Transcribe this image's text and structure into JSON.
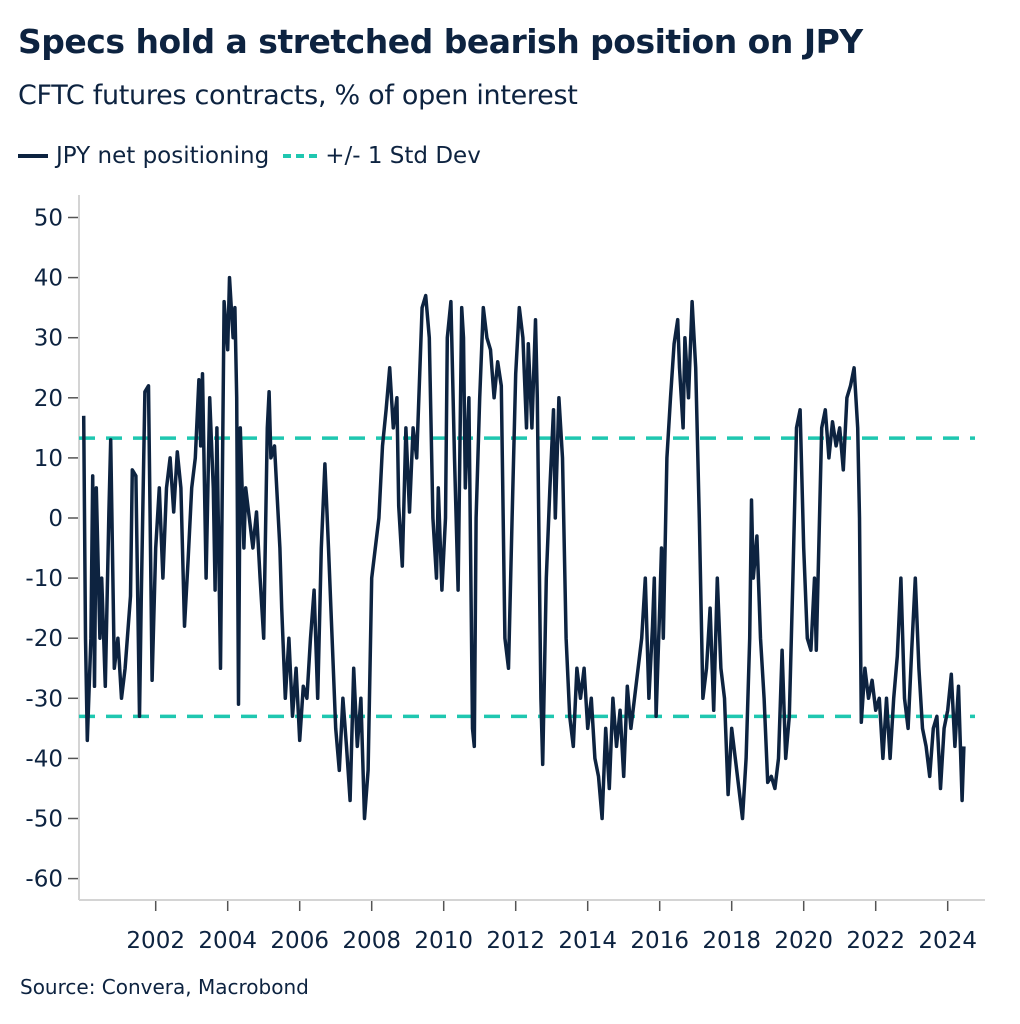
{
  "chart_data": {
    "type": "line",
    "title": "Specs hold a stretched bearish position on JPY",
    "subtitle": "CFTC futures contracts, % of open interest",
    "source": "Source: Convera, Macrobond",
    "xlabel": "",
    "ylabel": "",
    "xlim": [
      1999.87,
      2025.05
    ],
    "ylim": [
      -63,
      53
    ],
    "x_ticks": [
      "2002",
      "2004",
      "2006",
      "2008",
      "2010",
      "2012",
      "2014",
      "2016",
      "2018",
      "2020",
      "2022",
      "2024"
    ],
    "y_ticks": [
      "50",
      "40",
      "30",
      "20",
      "10",
      "0",
      "-10",
      "-20",
      "-30",
      "-40",
      "-50",
      "-60"
    ],
    "grid": false,
    "legend_position": "top-left",
    "colors": {
      "series": "#0d2340",
      "std_dev": "#1fc7b0"
    },
    "series": [
      {
        "name": "JPY net positioning",
        "points": [
          [
            2000.0,
            17
          ],
          [
            2000.05,
            -20
          ],
          [
            2000.1,
            -37
          ],
          [
            2000.2,
            -20
          ],
          [
            2000.25,
            7
          ],
          [
            2000.3,
            -28
          ],
          [
            2000.35,
            5
          ],
          [
            2000.45,
            -20
          ],
          [
            2000.5,
            -10
          ],
          [
            2000.6,
            -28
          ],
          [
            2000.7,
            1
          ],
          [
            2000.75,
            13
          ],
          [
            2000.85,
            -25
          ],
          [
            2000.95,
            -20
          ],
          [
            2001.05,
            -30
          ],
          [
            2001.15,
            -25
          ],
          [
            2001.3,
            -13
          ],
          [
            2001.35,
            8
          ],
          [
            2001.45,
            7
          ],
          [
            2001.55,
            -33
          ],
          [
            2001.6,
            -13
          ],
          [
            2001.7,
            21
          ],
          [
            2001.8,
            22
          ],
          [
            2001.9,
            -27
          ],
          [
            2002.0,
            -5
          ],
          [
            2002.1,
            5
          ],
          [
            2002.2,
            -10
          ],
          [
            2002.3,
            5
          ],
          [
            2002.4,
            10
          ],
          [
            2002.5,
            1
          ],
          [
            2002.6,
            11
          ],
          [
            2002.7,
            5
          ],
          [
            2002.8,
            -18
          ],
          [
            2002.9,
            -7
          ],
          [
            2003.0,
            5
          ],
          [
            2003.1,
            10
          ],
          [
            2003.2,
            23
          ],
          [
            2003.25,
            12
          ],
          [
            2003.3,
            24
          ],
          [
            2003.4,
            -10
          ],
          [
            2003.5,
            20
          ],
          [
            2003.6,
            5
          ],
          [
            2003.65,
            -12
          ],
          [
            2003.7,
            15
          ],
          [
            2003.8,
            -25
          ],
          [
            2003.9,
            36
          ],
          [
            2004.0,
            28
          ],
          [
            2004.05,
            40
          ],
          [
            2004.15,
            30
          ],
          [
            2004.2,
            35
          ],
          [
            2004.25,
            20
          ],
          [
            2004.3,
            -31
          ],
          [
            2004.35,
            15
          ],
          [
            2004.45,
            -5
          ],
          [
            2004.5,
            5
          ],
          [
            2004.6,
            0
          ],
          [
            2004.7,
            -5
          ],
          [
            2004.8,
            1
          ],
          [
            2004.9,
            -10
          ],
          [
            2005.0,
            -20
          ],
          [
            2005.1,
            15
          ],
          [
            2005.15,
            21
          ],
          [
            2005.2,
            10
          ],
          [
            2005.3,
            12
          ],
          [
            2005.45,
            -5
          ],
          [
            2005.5,
            -15
          ],
          [
            2005.6,
            -30
          ],
          [
            2005.7,
            -20
          ],
          [
            2005.8,
            -33
          ],
          [
            2005.9,
            -25
          ],
          [
            2006.0,
            -37
          ],
          [
            2006.1,
            -28
          ],
          [
            2006.2,
            -30
          ],
          [
            2006.3,
            -20
          ],
          [
            2006.4,
            -12
          ],
          [
            2006.5,
            -30
          ],
          [
            2006.6,
            -5
          ],
          [
            2006.7,
            9
          ],
          [
            2006.8,
            -5
          ],
          [
            2006.9,
            -20
          ],
          [
            2007.0,
            -35
          ],
          [
            2007.1,
            -42
          ],
          [
            2007.2,
            -30
          ],
          [
            2007.3,
            -38
          ],
          [
            2007.4,
            -47
          ],
          [
            2007.5,
            -25
          ],
          [
            2007.6,
            -38
          ],
          [
            2007.7,
            -30
          ],
          [
            2007.8,
            -50
          ],
          [
            2007.9,
            -42
          ],
          [
            2008.0,
            -10
          ],
          [
            2008.1,
            -5
          ],
          [
            2008.2,
            0
          ],
          [
            2008.3,
            12
          ],
          [
            2008.4,
            18
          ],
          [
            2008.5,
            25
          ],
          [
            2008.6,
            15
          ],
          [
            2008.7,
            20
          ],
          [
            2008.75,
            2
          ],
          [
            2008.85,
            -8
          ],
          [
            2008.95,
            15
          ],
          [
            2009.05,
            1
          ],
          [
            2009.15,
            15
          ],
          [
            2009.25,
            10
          ],
          [
            2009.4,
            35
          ],
          [
            2009.5,
            37
          ],
          [
            2009.6,
            30
          ],
          [
            2009.7,
            0
          ],
          [
            2009.8,
            -10
          ],
          [
            2009.85,
            5
          ],
          [
            2009.95,
            -12
          ],
          [
            2010.05,
            0
          ],
          [
            2010.1,
            30
          ],
          [
            2010.2,
            36
          ],
          [
            2010.3,
            10
          ],
          [
            2010.4,
            -12
          ],
          [
            2010.5,
            35
          ],
          [
            2010.55,
            30
          ],
          [
            2010.6,
            5
          ],
          [
            2010.7,
            20
          ],
          [
            2010.8,
            -35
          ],
          [
            2010.85,
            -38
          ],
          [
            2010.9,
            0
          ],
          [
            2011.0,
            20
          ],
          [
            2011.1,
            35
          ],
          [
            2011.2,
            30
          ],
          [
            2011.3,
            28
          ],
          [
            2011.4,
            20
          ],
          [
            2011.5,
            26
          ],
          [
            2011.6,
            22
          ],
          [
            2011.7,
            -20
          ],
          [
            2011.8,
            -25
          ],
          [
            2011.9,
            0
          ],
          [
            2012.0,
            24
          ],
          [
            2012.1,
            35
          ],
          [
            2012.2,
            30
          ],
          [
            2012.3,
            15
          ],
          [
            2012.35,
            29
          ],
          [
            2012.45,
            15
          ],
          [
            2012.55,
            33
          ],
          [
            2012.6,
            20
          ],
          [
            2012.7,
            -30
          ],
          [
            2012.75,
            -41
          ],
          [
            2012.85,
            -10
          ],
          [
            2012.95,
            5
          ],
          [
            2013.05,
            18
          ],
          [
            2013.1,
            0
          ],
          [
            2013.2,
            20
          ],
          [
            2013.3,
            10
          ],
          [
            2013.4,
            -20
          ],
          [
            2013.5,
            -33
          ],
          [
            2013.6,
            -38
          ],
          [
            2013.7,
            -25
          ],
          [
            2013.8,
            -30
          ],
          [
            2013.9,
            -25
          ],
          [
            2014.0,
            -35
          ],
          [
            2014.1,
            -30
          ],
          [
            2014.2,
            -40
          ],
          [
            2014.3,
            -43
          ],
          [
            2014.4,
            -50
          ],
          [
            2014.5,
            -35
          ],
          [
            2014.6,
            -45
          ],
          [
            2014.7,
            -30
          ],
          [
            2014.8,
            -38
          ],
          [
            2014.9,
            -32
          ],
          [
            2015.0,
            -43
          ],
          [
            2015.1,
            -28
          ],
          [
            2015.2,
            -35
          ],
          [
            2015.3,
            -30
          ],
          [
            2015.4,
            -25
          ],
          [
            2015.5,
            -20
          ],
          [
            2015.6,
            -10
          ],
          [
            2015.7,
            -30
          ],
          [
            2015.8,
            -18
          ],
          [
            2015.85,
            -10
          ],
          [
            2015.9,
            -33
          ],
          [
            2016.0,
            -15
          ],
          [
            2016.05,
            -5
          ],
          [
            2016.1,
            -20
          ],
          [
            2016.2,
            10
          ],
          [
            2016.3,
            20
          ],
          [
            2016.4,
            29
          ],
          [
            2016.5,
            33
          ],
          [
            2016.55,
            25
          ],
          [
            2016.65,
            15
          ],
          [
            2016.7,
            30
          ],
          [
            2016.8,
            20
          ],
          [
            2016.9,
            36
          ],
          [
            2017.0,
            25
          ],
          [
            2017.1,
            0
          ],
          [
            2017.2,
            -30
          ],
          [
            2017.3,
            -25
          ],
          [
            2017.4,
            -15
          ],
          [
            2017.5,
            -32
          ],
          [
            2017.6,
            -10
          ],
          [
            2017.7,
            -25
          ],
          [
            2017.8,
            -30
          ],
          [
            2017.9,
            -46
          ],
          [
            2018.0,
            -35
          ],
          [
            2018.1,
            -40
          ],
          [
            2018.2,
            -45
          ],
          [
            2018.3,
            -50
          ],
          [
            2018.4,
            -40
          ],
          [
            2018.5,
            -20
          ],
          [
            2018.55,
            3
          ],
          [
            2018.6,
            -10
          ],
          [
            2018.7,
            -3
          ],
          [
            2018.8,
            -20
          ],
          [
            2018.9,
            -30
          ],
          [
            2019.0,
            -44
          ],
          [
            2019.1,
            -43
          ],
          [
            2019.2,
            -45
          ],
          [
            2019.3,
            -40
          ],
          [
            2019.4,
            -22
          ],
          [
            2019.5,
            -40
          ],
          [
            2019.6,
            -33
          ],
          [
            2019.7,
            -10
          ],
          [
            2019.8,
            15
          ],
          [
            2019.9,
            18
          ],
          [
            2020.0,
            -5
          ],
          [
            2020.1,
            -20
          ],
          [
            2020.2,
            -22
          ],
          [
            2020.3,
            -10
          ],
          [
            2020.35,
            -22
          ],
          [
            2020.5,
            15
          ],
          [
            2020.6,
            18
          ],
          [
            2020.7,
            10
          ],
          [
            2020.8,
            16
          ],
          [
            2020.9,
            12
          ],
          [
            2021.0,
            15
          ],
          [
            2021.1,
            8
          ],
          [
            2021.2,
            20
          ],
          [
            2021.3,
            22
          ],
          [
            2021.4,
            25
          ],
          [
            2021.5,
            15
          ],
          [
            2021.55,
            0
          ],
          [
            2021.6,
            -34
          ],
          [
            2021.7,
            -25
          ],
          [
            2021.8,
            -30
          ],
          [
            2021.9,
            -27
          ],
          [
            2022.0,
            -32
          ],
          [
            2022.1,
            -30
          ],
          [
            2022.2,
            -40
          ],
          [
            2022.3,
            -30
          ],
          [
            2022.4,
            -40
          ],
          [
            2022.5,
            -30
          ],
          [
            2022.6,
            -23
          ],
          [
            2022.7,
            -10
          ],
          [
            2022.8,
            -30
          ],
          [
            2022.9,
            -35
          ],
          [
            2023.0,
            -22
          ],
          [
            2023.1,
            -10
          ],
          [
            2023.2,
            -25
          ],
          [
            2023.3,
            -35
          ],
          [
            2023.4,
            -38
          ],
          [
            2023.5,
            -43
          ],
          [
            2023.6,
            -35
          ],
          [
            2023.7,
            -33
          ],
          [
            2023.8,
            -45
          ],
          [
            2023.9,
            -35
          ],
          [
            2024.0,
            -32
          ],
          [
            2024.1,
            -26
          ],
          [
            2024.2,
            -38
          ],
          [
            2024.3,
            -28
          ],
          [
            2024.4,
            -47
          ],
          [
            2024.45,
            -38
          ]
        ]
      },
      {
        "name": "+/- 1 Std Dev",
        "upper": 13.3,
        "lower": -33
      }
    ]
  }
}
